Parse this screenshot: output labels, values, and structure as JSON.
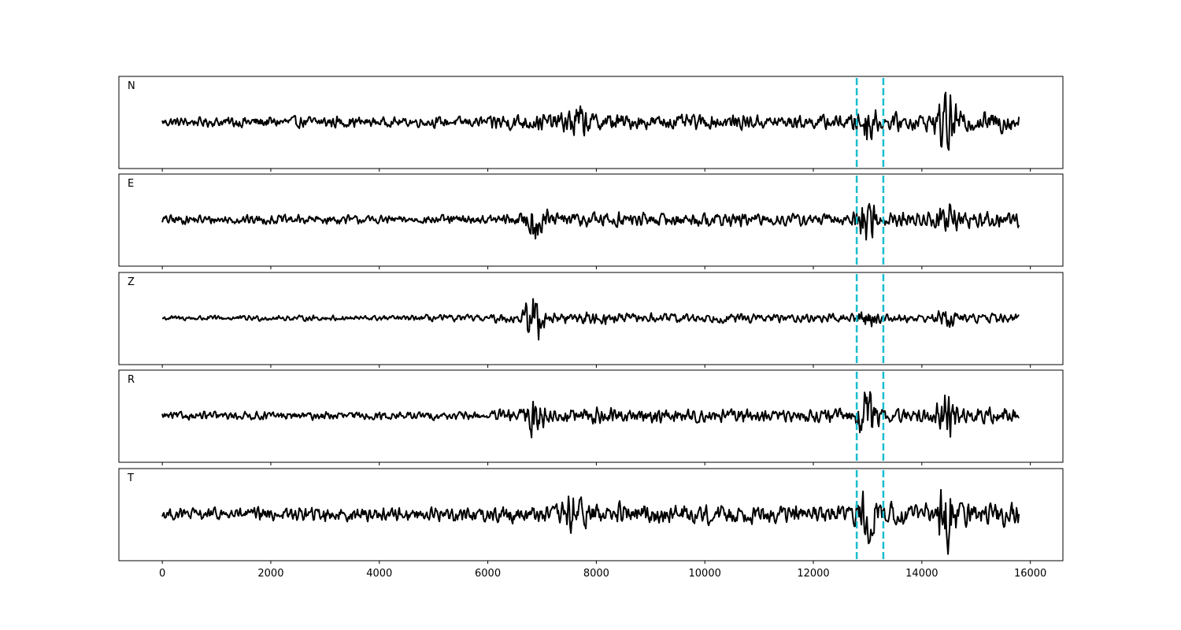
{
  "chart_data": {
    "type": "line",
    "panels": [
      {
        "label": "N",
        "bursts": [
          {
            "t": 7650,
            "a": 0.9
          },
          {
            "t": 13000,
            "a": 1.2
          },
          {
            "t": 14450,
            "a": 1.9
          }
        ],
        "energy": [
          0.35,
          0.45,
          0.45,
          0.35,
          0.4,
          0.65,
          0.7,
          0.55,
          0.55,
          0.5,
          0.55,
          0.65,
          0.8
        ]
      },
      {
        "label": "E",
        "bursts": [
          {
            "t": 6900,
            "a": 1.6
          },
          {
            "t": 13000,
            "a": 1.9
          },
          {
            "t": 14450,
            "a": 1.3
          }
        ],
        "energy": [
          0.35,
          0.35,
          0.35,
          0.3,
          0.35,
          0.45,
          0.6,
          0.5,
          0.5,
          0.45,
          0.45,
          0.55,
          0.6
        ]
      },
      {
        "label": "Z",
        "bursts": [
          {
            "t": 6850,
            "a": 2.0
          },
          {
            "t": 13000,
            "a": 0.6
          },
          {
            "t": 14450,
            "a": 0.6
          }
        ],
        "energy": [
          0.2,
          0.2,
          0.2,
          0.2,
          0.25,
          0.35,
          0.45,
          0.35,
          0.35,
          0.3,
          0.3,
          0.3,
          0.35
        ]
      },
      {
        "label": "R",
        "bursts": [
          {
            "t": 6850,
            "a": 1.6
          },
          {
            "t": 13000,
            "a": 1.9
          },
          {
            "t": 14450,
            "a": 2.0
          }
        ],
        "energy": [
          0.3,
          0.3,
          0.3,
          0.3,
          0.3,
          0.45,
          0.6,
          0.5,
          0.5,
          0.45,
          0.5,
          0.55,
          0.6
        ]
      },
      {
        "label": "T",
        "bursts": [
          {
            "t": 7600,
            "a": 1.2
          },
          {
            "t": 13000,
            "a": 1.4
          },
          {
            "t": 14450,
            "a": 2.2
          }
        ],
        "energy": [
          0.45,
          0.5,
          0.55,
          0.5,
          0.55,
          0.7,
          0.85,
          0.75,
          0.7,
          0.7,
          0.75,
          0.8,
          0.85
        ]
      }
    ],
    "n_samples": 15800,
    "xlim": [
      -800,
      16600
    ],
    "xticks": [
      0,
      2000,
      4000,
      6000,
      8000,
      10000,
      12000,
      14000,
      16000
    ],
    "markers": [
      12800,
      13290
    ],
    "marker_color": "#17becf",
    "line_color": "#000000",
    "xlabel": "",
    "ylabel": "",
    "title": "",
    "grid": false
  }
}
